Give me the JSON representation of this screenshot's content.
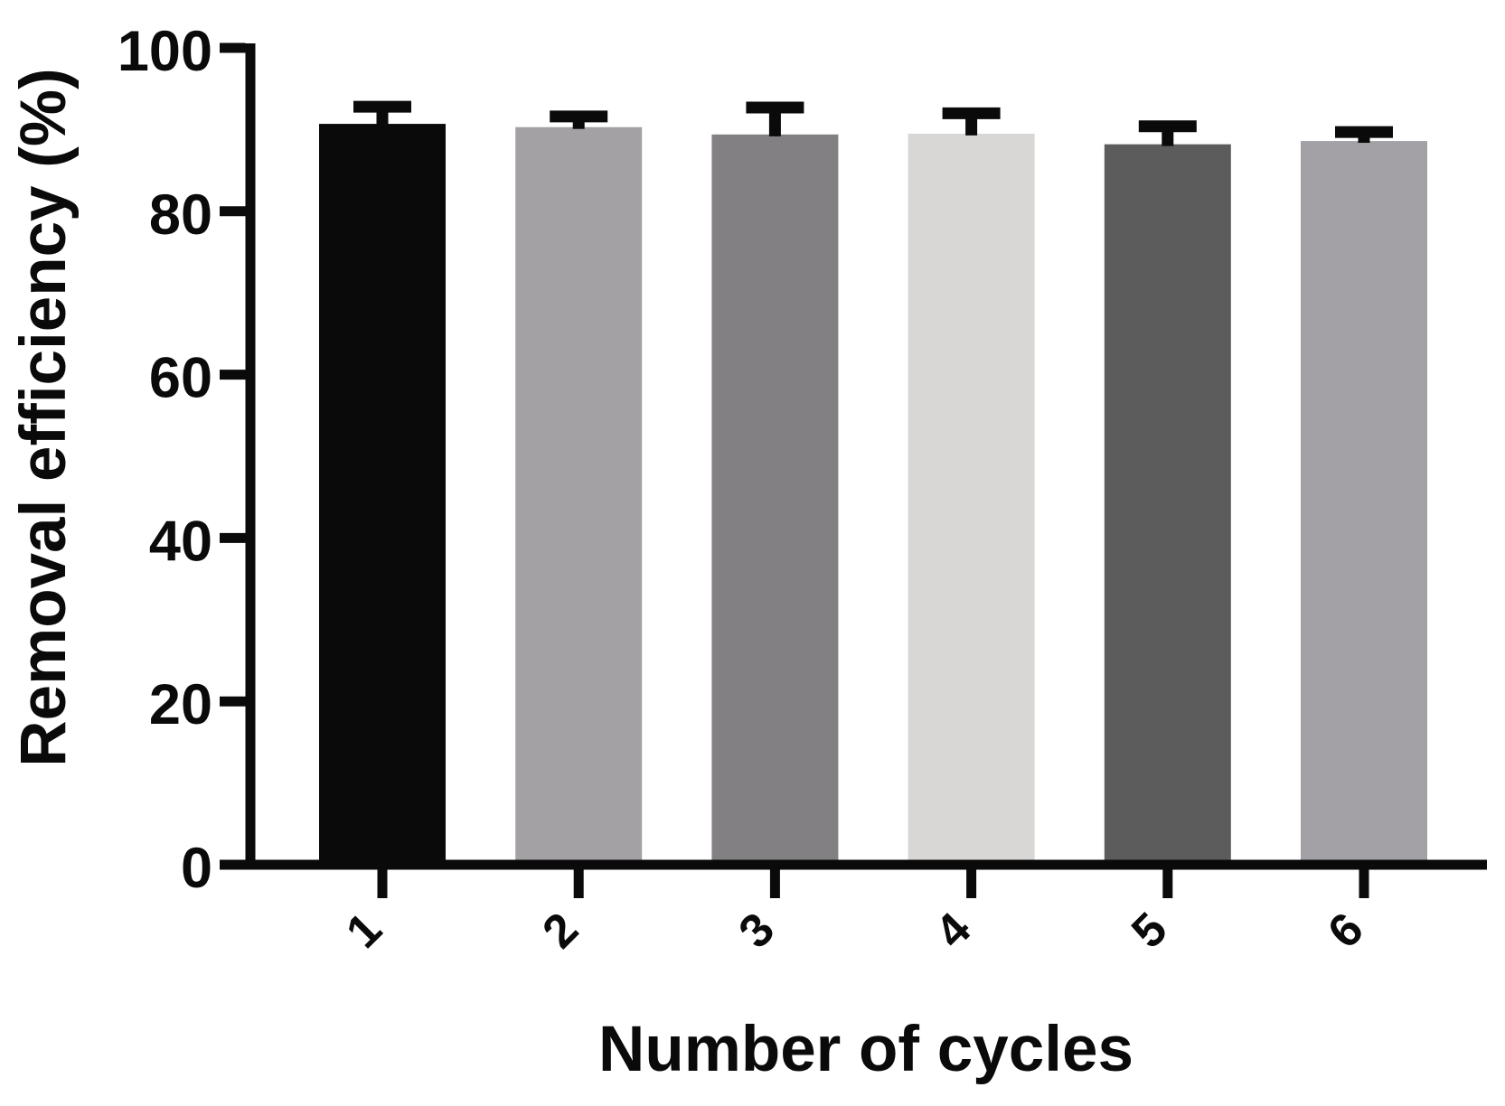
{
  "chart_data": {
    "type": "bar",
    "title": "",
    "xlabel": "Number of cycles",
    "ylabel": "Removal efficiency (%)",
    "categories": [
      "1",
      "2",
      "3",
      "4",
      "5",
      "6"
    ],
    "values": [
      90.7,
      90.3,
      89.4,
      89.5,
      88.2,
      88.6
    ],
    "errors_plus": [
      2.1,
      1.3,
      3.3,
      2.5,
      2.2,
      1.1
    ],
    "bar_colors": [
      "#0a0a0a",
      "#a4a1a4",
      "#828082",
      "#d8d7d5",
      "#5d5c5d",
      "#a3a1a5"
    ],
    "ylim": [
      0,
      100
    ],
    "yticks": [
      0,
      20,
      40,
      60,
      80,
      100
    ],
    "x_tick_rotation_deg": -45,
    "grid": false,
    "legend": "none",
    "error_bar_style": "upper-cap-only",
    "axis_color": "#0a0a0a",
    "background": "#ffffff"
  }
}
